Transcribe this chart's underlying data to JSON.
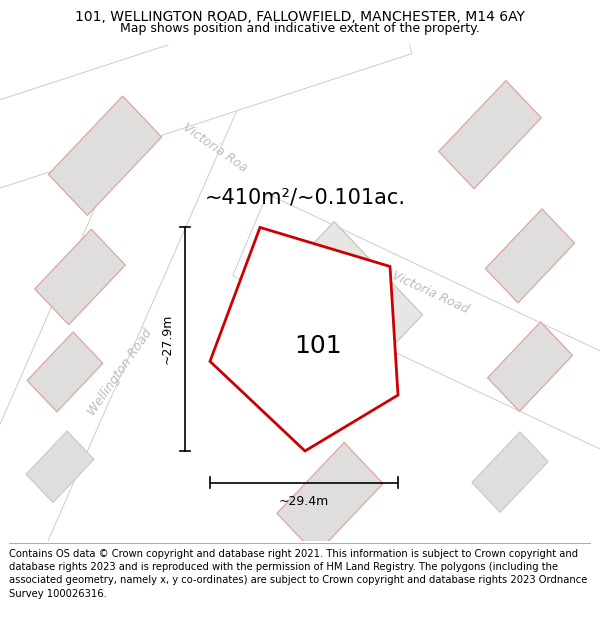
{
  "title": "101, WELLINGTON ROAD, FALLOWFIELD, MANCHESTER, M14 6AY",
  "subtitle": "Map shows position and indicative extent of the property.",
  "footer": "Contains OS data © Crown copyright and database right 2021. This information is subject to Crown copyright and database rights 2023 and is reproduced with the permission of HM Land Registry. The polygons (including the associated geometry, namely x, y co-ordinates) are subject to Crown copyright and database rights 2023 Ordnance Survey 100026316.",
  "area_label": "~410m²/~0.101ac.",
  "property_number": "101",
  "dim_width": "~29.4m",
  "dim_height": "~27.9m",
  "map_bg": "#f0eeec",
  "building_fill": "#e0dedd",
  "building_edge": "#c8c8c8",
  "road_fill": "#ffffff",
  "road_edge": "#cccccc",
  "highlight_fill": "#ffffff",
  "highlight_stroke": "#cc0000",
  "road_label_color": "#bbbbbb",
  "road_label_fontsize": 9,
  "title_fontsize": 10,
  "subtitle_fontsize": 9,
  "footer_fontsize": 7.2,
  "area_fontsize": 15,
  "number_fontsize": 18,
  "dim_fontsize": 9,
  "pink_edge": "#e8a0a0",
  "pink_fill": "#f5e0e0"
}
